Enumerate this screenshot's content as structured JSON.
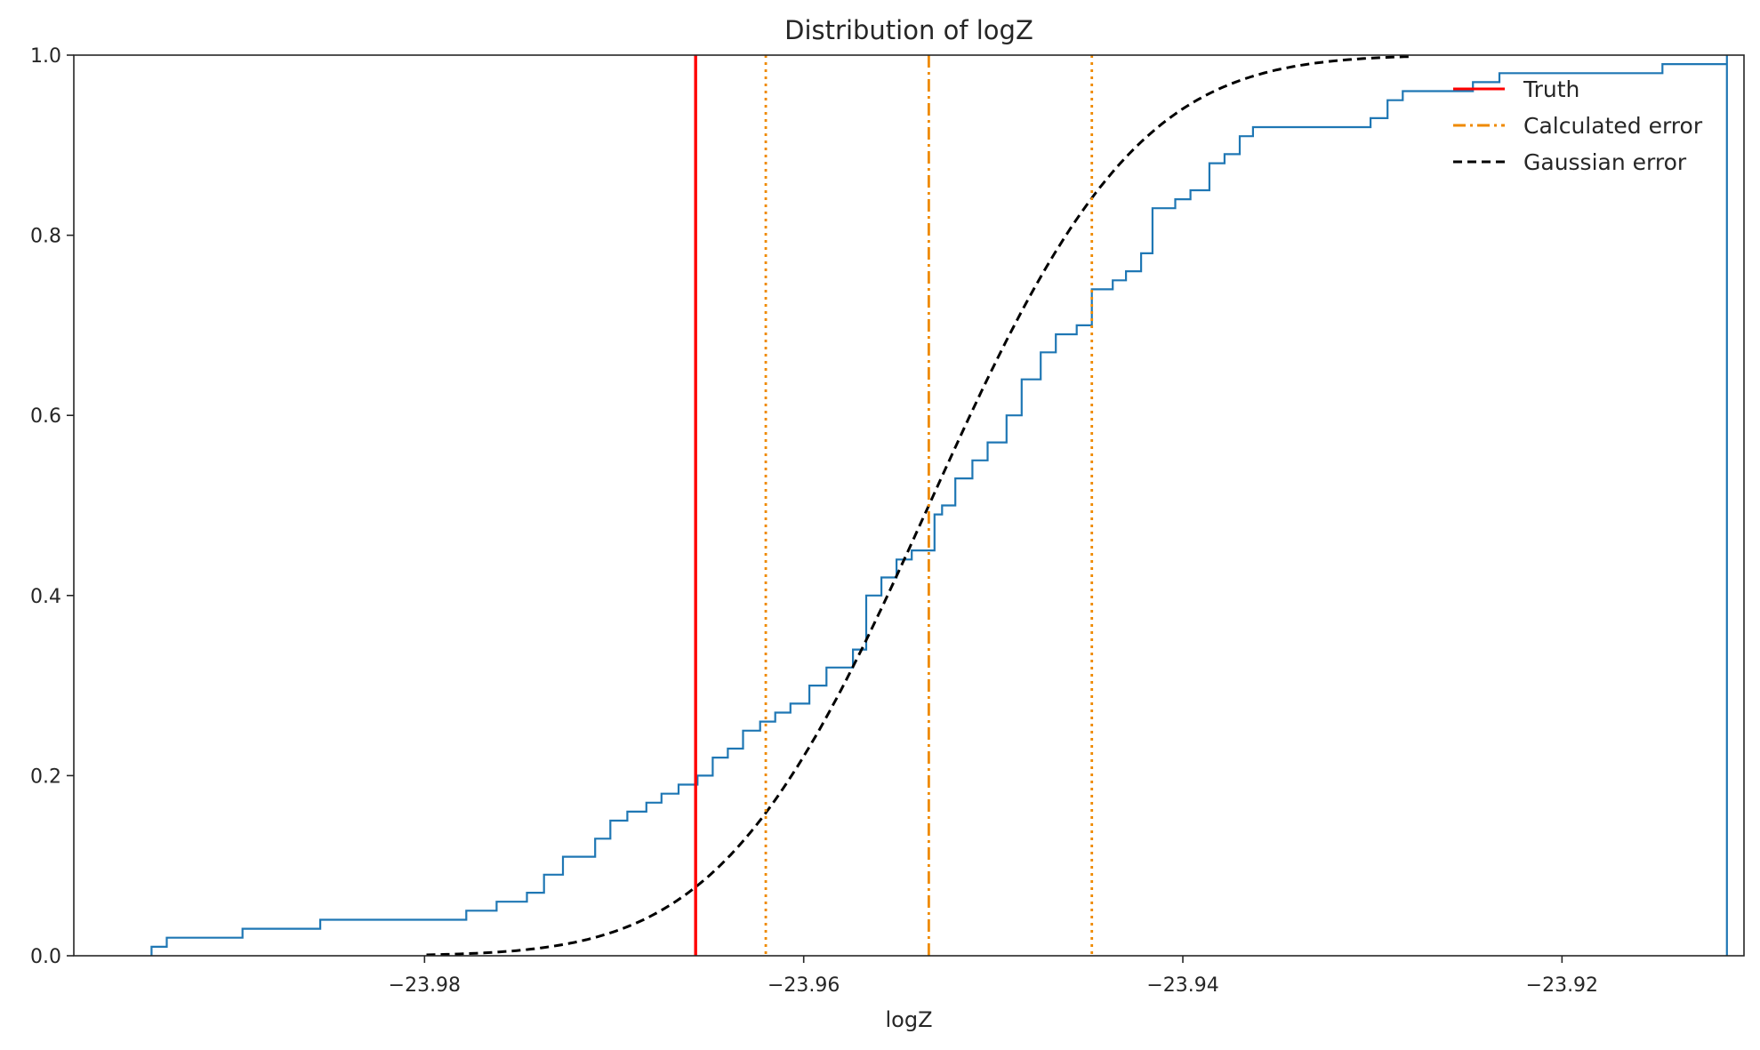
{
  "chart_data": {
    "type": "line",
    "title": "Distribution of logZ",
    "xlabel": "logZ",
    "ylabel": "",
    "xlim": [
      -23.9985,
      -23.9104
    ],
    "ylim": [
      0,
      1
    ],
    "xticks": [
      -23.98,
      -23.96,
      -23.94,
      -23.92
    ],
    "xtick_labels": [
      "−23.98",
      "−23.96",
      "−23.94",
      "−23.92"
    ],
    "yticks": [
      0.0,
      0.2,
      0.4,
      0.6,
      0.8,
      1.0
    ],
    "ytick_labels": [
      "0.0",
      "0.2",
      "0.4",
      "0.6",
      "0.8",
      "1.0"
    ],
    "grid": false,
    "legend_position": "top-right",
    "colors": {
      "ecdf": "#1f77b4",
      "truth": "#ff0000",
      "calculated": "#ef8a00",
      "gaussian": "#000000",
      "axes": "#262626"
    },
    "series": [
      {
        "kind": "ecdf-step",
        "x": [
          -23.9944,
          -23.9936,
          -23.9896,
          -23.9855,
          -23.9778,
          -23.9762,
          -23.9746,
          -23.9737,
          -23.9727,
          -23.971,
          -23.9702,
          -23.9693,
          -23.9683,
          -23.9675,
          -23.9666,
          -23.9656,
          -23.9648,
          -23.964,
          -23.9632,
          -23.9623,
          -23.9615,
          -23.9607,
          -23.9597,
          -23.9588,
          -23.9574,
          -23.9567,
          -23.9559,
          -23.9551,
          -23.9543,
          -23.9531,
          -23.9527,
          -23.952,
          -23.9511,
          -23.9503,
          -23.9493,
          -23.9485,
          -23.9475,
          -23.9467,
          -23.9456,
          -23.9448,
          -23.9437,
          -23.943,
          -23.9422,
          -23.9416,
          -23.9404,
          -23.9396,
          -23.9386,
          -23.9378,
          -23.937,
          -23.9363,
          -23.9301,
          -23.9292,
          -23.9284,
          -23.9247,
          -23.9233,
          -23.9147,
          -23.9113
        ],
        "y": [
          0.01,
          0.02,
          0.03,
          0.04,
          0.05,
          0.06,
          0.07,
          0.09,
          0.11,
          0.13,
          0.15,
          0.16,
          0.17,
          0.18,
          0.19,
          0.2,
          0.22,
          0.23,
          0.25,
          0.26,
          0.27,
          0.28,
          0.3,
          0.32,
          0.34,
          0.4,
          0.42,
          0.44,
          0.45,
          0.49,
          0.5,
          0.53,
          0.55,
          0.57,
          0.6,
          0.64,
          0.67,
          0.69,
          0.7,
          0.74,
          0.75,
          0.76,
          0.78,
          0.83,
          0.84,
          0.85,
          0.88,
          0.89,
          0.91,
          0.92,
          0.93,
          0.95,
          0.96,
          0.97,
          0.98,
          0.99,
          1.0
        ]
      },
      {
        "name": "Truth",
        "kind": "vline",
        "x": -23.9657,
        "style": "solid"
      },
      {
        "name": "Calculated error",
        "kind": "vline",
        "x": -23.9534,
        "style": "dashdot"
      },
      {
        "kind": "vline",
        "x": -23.962,
        "style": "dotted"
      },
      {
        "kind": "vline",
        "x": -23.9448,
        "style": "dotted"
      },
      {
        "name": "Gaussian error",
        "kind": "normal-cdf",
        "mean": -23.9534,
        "sigma": 0.0086,
        "x_range": [
          -23.9799,
          -23.9279
        ],
        "style": "dashed"
      }
    ]
  }
}
